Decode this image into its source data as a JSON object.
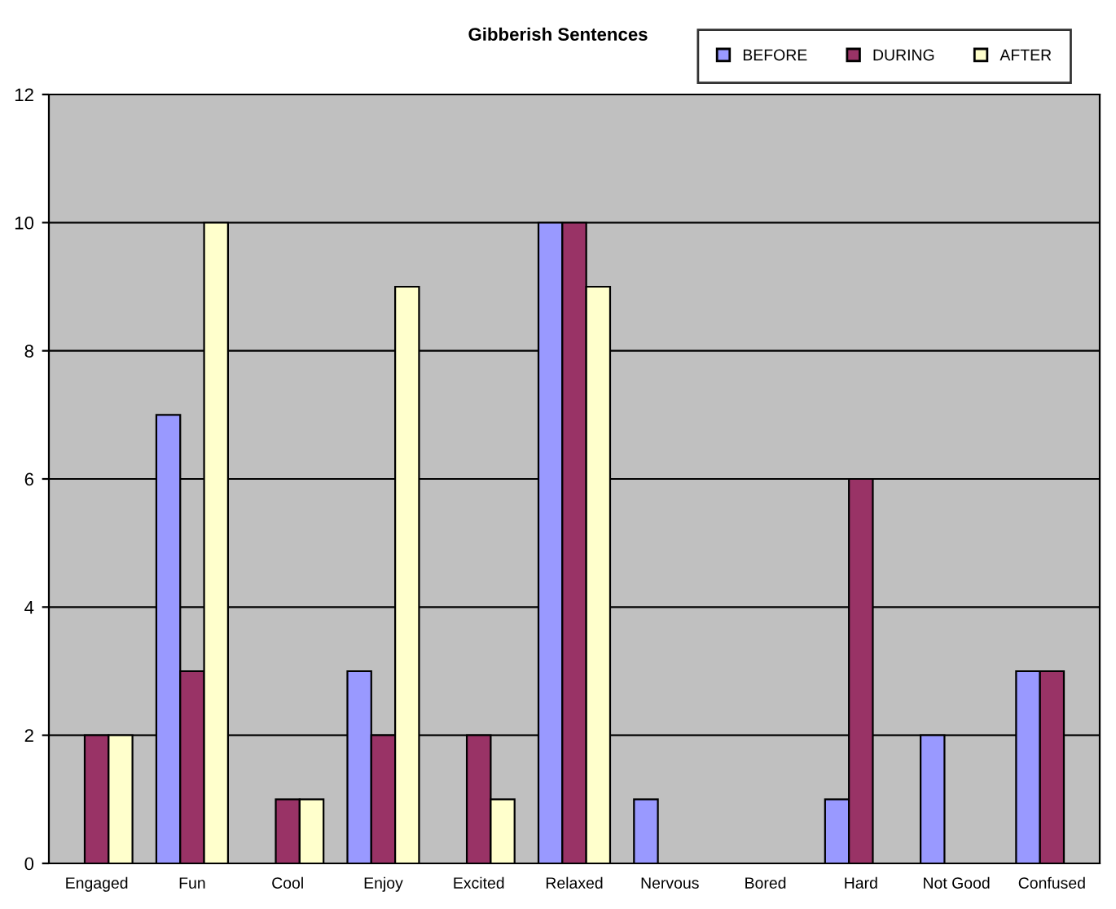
{
  "chart_data": {
    "type": "bar",
    "title": "Gibberish Sentences",
    "categories": [
      "Engaged",
      "Fun",
      "Cool",
      "Enjoy",
      "Excited",
      "Relaxed",
      "Nervous",
      "Bored",
      "Hard",
      "Not Good",
      "Confused"
    ],
    "series": [
      {
        "name": "BEFORE",
        "color": "#9999ff",
        "values": [
          0,
          7,
          0,
          3,
          0,
          10,
          1,
          0,
          1,
          2,
          3
        ]
      },
      {
        "name": "DURING",
        "color": "#993366",
        "values": [
          2,
          3,
          1,
          2,
          2,
          10,
          0,
          0,
          6,
          0,
          3
        ]
      },
      {
        "name": "AFTER",
        "color": "#ffffcc",
        "values": [
          2,
          10,
          1,
          9,
          1,
          9,
          0,
          0,
          0,
          0,
          0
        ]
      }
    ],
    "ylim": [
      0,
      12
    ],
    "yticks": [
      0,
      2,
      4,
      6,
      8,
      10,
      12
    ],
    "grid": "y",
    "legend": "top right"
  }
}
